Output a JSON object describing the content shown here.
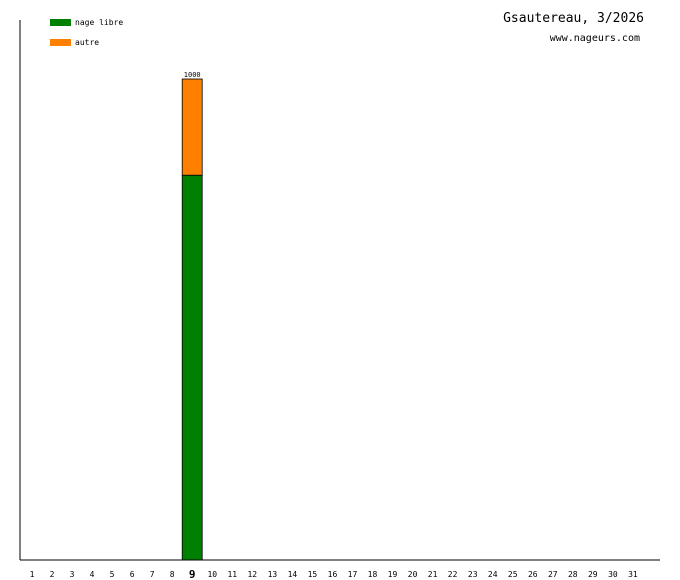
{
  "chart_data": {
    "type": "bar",
    "stacked": true,
    "title": "Gsautereau, 3/2026",
    "subtitle": "www.nageurs.com",
    "categories": [
      "1",
      "2",
      "3",
      "4",
      "5",
      "6",
      "7",
      "8",
      "9",
      "10",
      "11",
      "12",
      "13",
      "14",
      "15",
      "16",
      "17",
      "18",
      "19",
      "20",
      "21",
      "22",
      "23",
      "24",
      "25",
      "26",
      "27",
      "28",
      "29",
      "30",
      "31"
    ],
    "highlight_category": "9",
    "series": [
      {
        "name": "nage libre",
        "color": "#008000",
        "values": [
          0,
          0,
          0,
          0,
          0,
          0,
          0,
          0,
          800,
          0,
          0,
          0,
          0,
          0,
          0,
          0,
          0,
          0,
          0,
          0,
          0,
          0,
          0,
          0,
          0,
          0,
          0,
          0,
          0,
          0,
          0
        ]
      },
      {
        "name": "autre",
        "color": "#ff8000",
        "values": [
          0,
          0,
          0,
          0,
          0,
          0,
          0,
          0,
          200,
          0,
          0,
          0,
          0,
          0,
          0,
          0,
          0,
          0,
          0,
          0,
          0,
          0,
          0,
          0,
          0,
          0,
          0,
          0,
          0,
          0,
          0
        ]
      }
    ],
    "totals_labels": [
      {
        "category": "9",
        "text": "1000"
      }
    ],
    "ylim": [
      0,
      1000
    ],
    "grid": false,
    "legend_position": "top-left"
  }
}
